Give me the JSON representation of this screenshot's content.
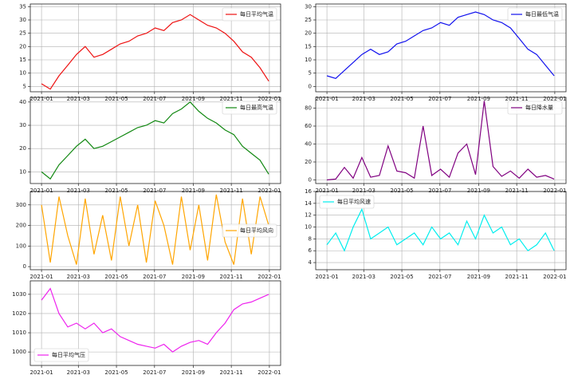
{
  "chart_data": [
    {
      "type": "line",
      "legend": "upper right",
      "grid": true,
      "x": [
        0,
        14,
        28,
        42,
        56,
        70,
        84,
        98,
        112,
        126,
        140,
        154,
        168,
        182,
        196,
        210,
        224,
        238,
        252,
        266,
        280,
        294,
        308,
        322,
        336,
        350,
        364
      ],
      "xlim": [
        -18,
        383
      ],
      "xticks": [
        {
          "value": 0,
          "label": "2021-01"
        },
        {
          "value": 59,
          "label": "2021-03"
        },
        {
          "value": 120,
          "label": "2021-05"
        },
        {
          "value": 181,
          "label": "2021-07"
        },
        {
          "value": 243,
          "label": "2021-09"
        },
        {
          "value": 304,
          "label": "2021-11"
        },
        {
          "value": 365,
          "label": "2022-01"
        }
      ],
      "ylim": [
        3,
        36
      ],
      "yticks": [
        5,
        10,
        15,
        20,
        25,
        30,
        35
      ],
      "series": [
        {
          "name": "每日平均气温",
          "color": "#ee1111",
          "values": [
            6,
            4,
            9,
            13,
            17,
            20,
            16,
            17,
            19,
            21,
            22,
            24,
            25,
            27,
            26,
            29,
            30,
            32,
            30,
            28,
            27,
            25,
            22,
            18,
            16,
            12,
            7
          ]
        }
      ]
    },
    {
      "type": "line",
      "legend": "upper right",
      "grid": true,
      "x": [
        0,
        14,
        28,
        42,
        56,
        70,
        84,
        98,
        112,
        126,
        140,
        154,
        168,
        182,
        196,
        210,
        224,
        238,
        252,
        266,
        280,
        294,
        308,
        322,
        336,
        350,
        364
      ],
      "xlim": [
        -18,
        383
      ],
      "xticks": [
        {
          "value": 0,
          "label": "2021-01"
        },
        {
          "value": 59,
          "label": "2021-03"
        },
        {
          "value": 120,
          "label": "2021-05"
        },
        {
          "value": 181,
          "label": "2021-07"
        },
        {
          "value": 243,
          "label": "2021-09"
        },
        {
          "value": 304,
          "label": "2021-11"
        },
        {
          "value": 365,
          "label": "2022-01"
        }
      ],
      "ylim": [
        -2,
        31
      ],
      "yticks": [
        0,
        5,
        10,
        15,
        20,
        25,
        30
      ],
      "series": [
        {
          "name": "每日最低气温",
          "color": "#1111ee",
          "values": [
            4,
            3,
            6,
            9,
            12,
            14,
            12,
            13,
            16,
            17,
            19,
            21,
            22,
            24,
            23,
            26,
            27,
            28,
            27,
            25,
            24,
            22,
            18,
            14,
            12,
            8,
            4
          ]
        }
      ]
    },
    {
      "type": "line",
      "legend": "upper right",
      "grid": true,
      "x": [
        0,
        14,
        28,
        42,
        56,
        70,
        84,
        98,
        112,
        126,
        140,
        154,
        168,
        182,
        196,
        210,
        224,
        238,
        252,
        266,
        280,
        294,
        308,
        322,
        336,
        350,
        364
      ],
      "xlim": [
        -18,
        383
      ],
      "xticks": [
        {
          "value": 0,
          "label": "2021-01"
        },
        {
          "value": 59,
          "label": "2021-03"
        },
        {
          "value": 120,
          "label": "2021-05"
        },
        {
          "value": 181,
          "label": "2021-07"
        },
        {
          "value": 243,
          "label": "2021-09"
        },
        {
          "value": 304,
          "label": "2021-11"
        },
        {
          "value": 365,
          "label": "2022-01"
        }
      ],
      "ylim": [
        5,
        42
      ],
      "yticks": [
        10,
        20,
        30,
        40
      ],
      "series": [
        {
          "name": "每日最高气温",
          "color": "#118811",
          "values": [
            10,
            7,
            13,
            17,
            21,
            24,
            20,
            21,
            23,
            25,
            27,
            29,
            30,
            32,
            31,
            35,
            37,
            40,
            36,
            33,
            31,
            28,
            26,
            21,
            18,
            15,
            9
          ]
        }
      ]
    },
    {
      "type": "line",
      "legend": "upper right",
      "grid": true,
      "x": [
        0,
        14,
        28,
        42,
        56,
        70,
        84,
        98,
        112,
        126,
        140,
        154,
        168,
        182,
        196,
        210,
        224,
        238,
        252,
        266,
        280,
        294,
        308,
        322,
        336,
        350,
        364
      ],
      "xlim": [
        -18,
        383
      ],
      "xticks": [
        {
          "value": 0,
          "label": "2021-01"
        },
        {
          "value": 59,
          "label": "2021-03"
        },
        {
          "value": 120,
          "label": "2021-05"
        },
        {
          "value": 181,
          "label": "2021-07"
        },
        {
          "value": 243,
          "label": "2021-09"
        },
        {
          "value": 304,
          "label": "2021-11"
        },
        {
          "value": 365,
          "label": "2022-01"
        }
      ],
      "ylim": [
        -4,
        92
      ],
      "yticks": [
        0,
        20,
        40,
        60,
        80
      ],
      "series": [
        {
          "name": "每日降水量",
          "color": "#800080",
          "values": [
            0,
            1,
            14,
            2,
            25,
            3,
            5,
            38,
            10,
            8,
            2,
            60,
            5,
            12,
            3,
            30,
            40,
            6,
            88,
            15,
            4,
            10,
            2,
            12,
            3,
            5,
            1
          ]
        }
      ]
    },
    {
      "type": "line",
      "legend": "center right",
      "grid": true,
      "x": [
        0,
        14,
        28,
        42,
        56,
        70,
        84,
        98,
        112,
        126,
        140,
        154,
        168,
        182,
        196,
        210,
        224,
        238,
        252,
        266,
        280,
        294,
        308,
        322,
        336,
        350,
        364
      ],
      "xlim": [
        -18,
        383
      ],
      "xticks": [
        {
          "value": 0,
          "label": "2021-01"
        },
        {
          "value": 59,
          "label": "2021-03"
        },
        {
          "value": 120,
          "label": "2021-05"
        },
        {
          "value": 181,
          "label": "2021-07"
        },
        {
          "value": 243,
          "label": "2021-09"
        },
        {
          "value": 304,
          "label": "2021-11"
        },
        {
          "value": 365,
          "label": "2022-01"
        }
      ],
      "ylim": [
        -15,
        365
      ],
      "yticks": [
        0,
        100,
        200,
        300
      ],
      "series": [
        {
          "name": "每日平均风向",
          "color": "#ffa500",
          "values": [
            300,
            20,
            340,
            150,
            10,
            330,
            60,
            250,
            30,
            340,
            100,
            300,
            20,
            320,
            200,
            10,
            340,
            80,
            300,
            30,
            350,
            120,
            10,
            330,
            60,
            340,
            200
          ]
        }
      ]
    },
    {
      "type": "line",
      "legend": "upper left",
      "grid": true,
      "x": [
        0,
        14,
        28,
        42,
        56,
        70,
        84,
        98,
        112,
        126,
        140,
        154,
        168,
        182,
        196,
        210,
        224,
        238,
        252,
        266,
        280,
        294,
        308,
        322,
        336,
        350,
        364
      ],
      "xlim": [
        -18,
        383
      ],
      "xticks": [
        {
          "value": 0,
          "label": "2021-01"
        },
        {
          "value": 59,
          "label": "2021-03"
        },
        {
          "value": 120,
          "label": "2021-05"
        },
        {
          "value": 181,
          "label": "2021-07"
        },
        {
          "value": 243,
          "label": "2021-09"
        },
        {
          "value": 304,
          "label": "2021-11"
        },
        {
          "value": 365,
          "label": "2022-01"
        }
      ],
      "ylim": [
        2.8,
        16
      ],
      "yticks": [
        4,
        6,
        8,
        10,
        12,
        14,
        16
      ],
      "series": [
        {
          "name": "每日平均风速",
          "color": "#00eeee",
          "values": [
            7,
            9,
            6,
            10,
            13,
            8,
            9,
            10,
            7,
            8,
            9,
            7,
            10,
            8,
            9,
            7,
            11,
            8,
            12,
            9,
            10,
            7,
            8,
            6,
            7,
            9,
            6
          ]
        }
      ]
    },
    {
      "type": "line",
      "legend": "lower left",
      "grid": true,
      "x": [
        0,
        14,
        28,
        42,
        56,
        70,
        84,
        98,
        112,
        126,
        140,
        154,
        168,
        182,
        196,
        210,
        224,
        238,
        252,
        266,
        280,
        294,
        308,
        322,
        336,
        350,
        364
      ],
      "xlim": [
        -18,
        383
      ],
      "xticks": [
        {
          "value": 0,
          "label": "2021-01"
        },
        {
          "value": 59,
          "label": "2021-03"
        },
        {
          "value": 120,
          "label": "2021-05"
        },
        {
          "value": 181,
          "label": "2021-07"
        },
        {
          "value": 243,
          "label": "2021-09"
        },
        {
          "value": 304,
          "label": "2021-11"
        },
        {
          "value": 365,
          "label": "2022-01"
        }
      ],
      "ylim": [
        993,
        1037
      ],
      "yticks": [
        1000,
        1010,
        1020,
        1030
      ],
      "series": [
        {
          "name": "每日平均气压",
          "color": "#ee22ee",
          "values": [
            1027,
            1033,
            1020,
            1013,
            1015,
            1012,
            1015,
            1010,
            1012,
            1008,
            1006,
            1004,
            1003,
            1002,
            1004,
            1000,
            1003,
            1005,
            1006,
            1004,
            1010,
            1015,
            1022,
            1025,
            1026,
            1028,
            1030
          ]
        }
      ]
    }
  ]
}
